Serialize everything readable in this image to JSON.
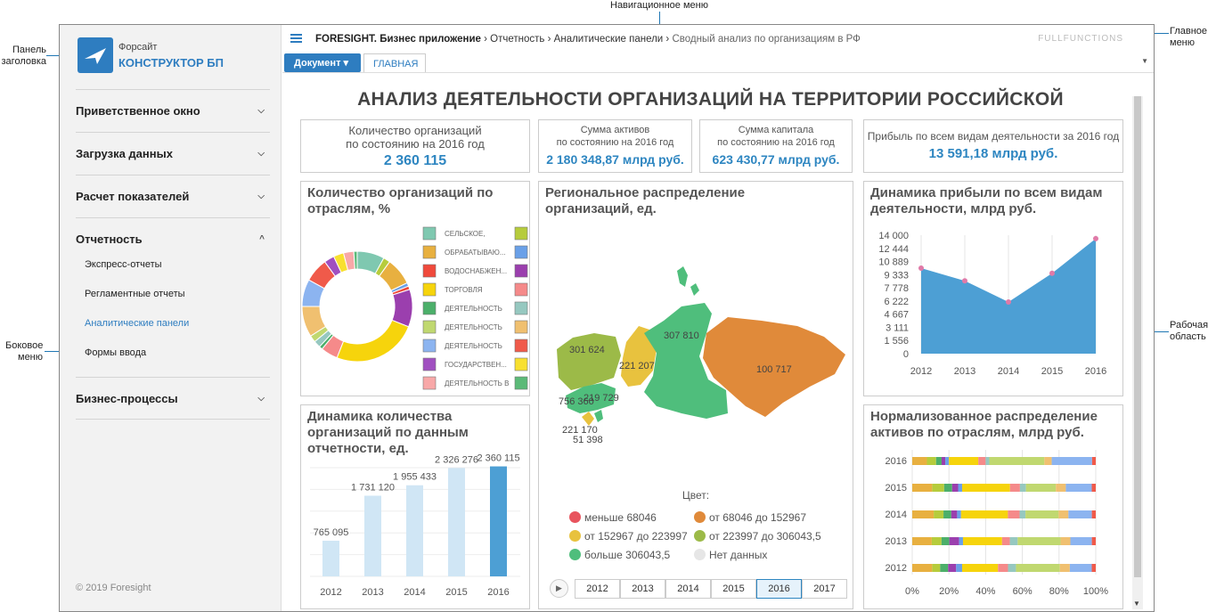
{
  "callouts": {
    "nav_menu": "Навигационное меню",
    "header_panel": [
      "Панель",
      "заголовка"
    ],
    "main_menu": [
      "Главное",
      "меню"
    ],
    "side_menu": [
      "Боковое",
      "меню"
    ],
    "work_area": [
      "Рабочая",
      "область"
    ]
  },
  "logo": {
    "line1": "Форсайт",
    "line2": "КОНСТРУКТОР БП"
  },
  "sidebar": {
    "sections": [
      {
        "label": "Приветственное окно",
        "chevron": "⌵"
      },
      {
        "label": "Загрузка данных",
        "chevron": "⌵"
      },
      {
        "label": "Расчет показателей",
        "chevron": "⌵"
      },
      {
        "label": "Отчетность",
        "chevron": "^"
      },
      {
        "label": "Бизнес-процессы",
        "chevron": "⌵"
      }
    ],
    "subitems": [
      "Экспресс-отчеты",
      "Регламентные отчеты",
      "Аналитические панели",
      "Формы ввода"
    ],
    "copyright": "© 2019 Foresight"
  },
  "topbar": {
    "app": "FORESIGHT. Бизнес приложение",
    "crumb1": "Отчетность",
    "crumb2": "Аналитические панели",
    "crumb3": "Сводный анализ по организациям в РФ",
    "sep": "›",
    "user": "FULLFUNCTIONS",
    "doc_button": "Документ ▾",
    "tab_main": "ГЛАВНАЯ",
    "dropdown": "▼"
  },
  "dashboard": {
    "title": "АНАЛИЗ ДЕЯТЕЛЬНОСТИ ОРГАНИЗАЦИЙ НА ТЕРРИТОРИИ РОССИЙСКОЙ",
    "kpis": [
      {
        "l1": "Количество организаций",
        "l2": "по состоянию на 2016 год",
        "value": "2 360 115"
      },
      {
        "l1": "Сумма активов",
        "l2": "по состоянию на 2016 год",
        "value": "2 180 348,87 млрд руб."
      },
      {
        "l1": "Сумма капитала",
        "l2": "по состоянию на 2016 год",
        "value": "623 430,77 млрд руб."
      },
      {
        "l1": "Прибыль по всем видам деятельности за 2016 год",
        "l2": "",
        "value": "13 591,18 млрд руб."
      }
    ],
    "panel_titles": {
      "donut": [
        "Количество организаций по",
        "отраслям, %"
      ],
      "map": [
        "Региональное распределение",
        "организаций, ед."
      ],
      "area": [
        "Динамика прибыли по всем видам",
        "деятельности, млрд руб."
      ],
      "bars": [
        "Динамика количества",
        "организаций по данным",
        "отчетности, ед."
      ],
      "stack": [
        "Нормализованное распределение",
        "активов по отраслям, млрд руб."
      ]
    },
    "map_legend": {
      "title": "Цвет:",
      "items": [
        {
          "label": "меньше 68046",
          "color": "#e8545e"
        },
        {
          "label": "от 68046 до 152967",
          "color": "#e08a3a"
        },
        {
          "label": "от 152967 до 223997",
          "color": "#e8c23e"
        },
        {
          "label": "от 223997 до 306043,5",
          "color": "#9cba48"
        },
        {
          "label": "больше 306043,5",
          "color": "#4fbe7c"
        },
        {
          "label": "Нет данных",
          "color": "#e6e6e6"
        }
      ],
      "years": [
        "2012",
        "2013",
        "2014",
        "2015",
        "2016",
        "2017"
      ],
      "active_year": "2016",
      "play": "▶"
    },
    "map_values": [
      "307 810",
      "301 624",
      "221 207",
      "100 717",
      "756 360",
      "219 729",
      "221 170",
      "51 398"
    ]
  },
  "chart_data": [
    {
      "type": "pie",
      "title": "Количество организаций по отраслям, %",
      "legend": [
        {
          "label": "СЕЛЬСКОЕ,",
          "color": "#7fc8b0"
        },
        {
          "label": "",
          "color": "#b6cc3c"
        },
        {
          "label": "ОБРАБАТЫВАЮ...",
          "color": "#e8b040"
        },
        {
          "label": "",
          "color": "#6aa0e8"
        },
        {
          "label": "ВОДОСНАБЖЕН...",
          "color": "#f04a3c"
        },
        {
          "label": "",
          "color": "#9b3fae"
        },
        {
          "label": "ТОРГОВЛЯ",
          "color": "#f6d40c"
        },
        {
          "label": "",
          "color": "#f58a8a"
        },
        {
          "label": "ДЕЯТЕЛЬНОСТЬ",
          "color": "#4caf6a"
        },
        {
          "label": "",
          "color": "#96c8c0"
        },
        {
          "label": "ДЕЯТЕЛЬНОСТЬ",
          "color": "#c0d870"
        },
        {
          "label": "",
          "color": "#f0c070"
        },
        {
          "label": "ДЕЯТЕЛЬНОСТЬ",
          "color": "#8cb4f0"
        },
        {
          "label": "",
          "color": "#f05a4a"
        },
        {
          "label": "ГОСУДАРСТВЕН...",
          "color": "#a050c0"
        },
        {
          "label": "",
          "color": "#f8e030"
        },
        {
          "label": "ДЕЯТЕЛЬНОСТЬ В",
          "color": "#f8a8a8"
        },
        {
          "label": "",
          "color": "#5cba78"
        }
      ],
      "values": [
        8,
        2,
        8,
        1,
        1,
        11,
        25,
        5,
        1,
        2,
        2,
        9,
        8,
        7,
        3,
        3,
        3,
        1
      ]
    },
    {
      "type": "area",
      "title": "Динамика прибыли по всем видам деятельности, млрд руб.",
      "x": [
        "2012",
        "2013",
        "2014",
        "2015",
        "2016"
      ],
      "values": [
        10100,
        8600,
        6100,
        9500,
        13591.18
      ],
      "yticks": [
        "14 000",
        "12 444",
        "10 889",
        "9 333",
        "7 778",
        "6 222",
        "4 667",
        "3 111",
        "1 556",
        "0"
      ],
      "ylim": [
        0,
        14000
      ],
      "color": "#4d9fd4"
    },
    {
      "type": "bar",
      "title": "Динамика количества организаций по данным отчетности, ед.",
      "categories": [
        "2012",
        "2013",
        "2014",
        "2015",
        "2016"
      ],
      "values": [
        765095,
        1731120,
        1955433,
        2326276,
        2360115
      ],
      "labels": [
        "765 095",
        "1 731 120",
        "1 955 433",
        "2 326 276",
        "2 360 115"
      ],
      "ylim": [
        0,
        2600000
      ]
    },
    {
      "type": "bar",
      "title": "Нормализованное распределение активов по отраслям, млрд руб.",
      "categories": [
        "2016",
        "2015",
        "2014",
        "2013",
        "2012"
      ],
      "xticks": [
        "0%",
        "20%",
        "40%",
        "60%",
        "80%",
        "100%"
      ],
      "colors": [
        "#e8b040",
        "#b6cc3c",
        "#4caf6a",
        "#9b3fae",
        "#6aa0e8",
        "#f6d40c",
        "#f58a8a",
        "#96c8c0",
        "#c0d870",
        "#f0c070",
        "#8cb4f0",
        "#f05a4a"
      ],
      "series_rows": [
        [
          0.08,
          0.05,
          0.03,
          0.02,
          0.02,
          0.16,
          0.04,
          0.02,
          0.3,
          0.04,
          0.22,
          0.02
        ],
        [
          0.1,
          0.06,
          0.04,
          0.03,
          0.02,
          0.24,
          0.05,
          0.03,
          0.15,
          0.05,
          0.13,
          0.02
        ],
        [
          0.11,
          0.05,
          0.04,
          0.03,
          0.02,
          0.24,
          0.06,
          0.03,
          0.17,
          0.05,
          0.12,
          0.02
        ],
        [
          0.1,
          0.05,
          0.04,
          0.05,
          0.02,
          0.2,
          0.04,
          0.04,
          0.22,
          0.05,
          0.11,
          0.02
        ],
        [
          0.1,
          0.04,
          0.04,
          0.04,
          0.03,
          0.18,
          0.05,
          0.04,
          0.22,
          0.05,
          0.11,
          0.02
        ]
      ]
    }
  ]
}
